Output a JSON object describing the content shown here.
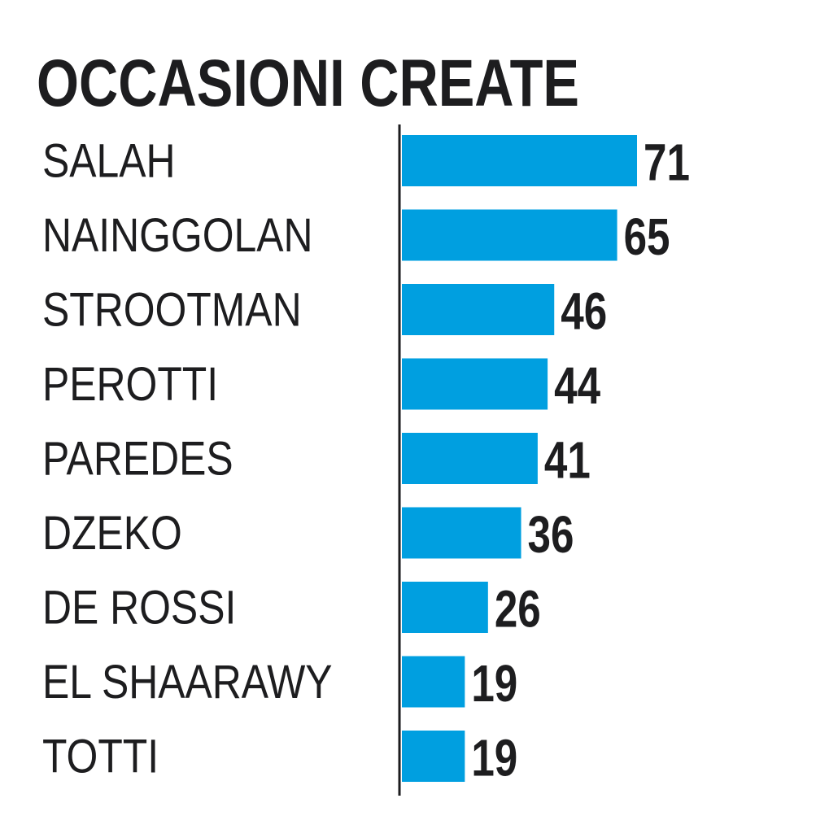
{
  "chart_data": {
    "type": "bar",
    "orientation": "horizontal",
    "title": "OCCASIONI CREATE",
    "categories": [
      "SALAH",
      "NAINGGOLAN",
      "STROOTMAN",
      "PEROTTI",
      "PAREDES",
      "DZEKO",
      "DE ROSSI",
      "EL SHAARAWY",
      "TOTTI"
    ],
    "values": [
      71,
      65,
      46,
      44,
      41,
      36,
      26,
      19,
      19
    ],
    "color": "#009fe0"
  }
}
